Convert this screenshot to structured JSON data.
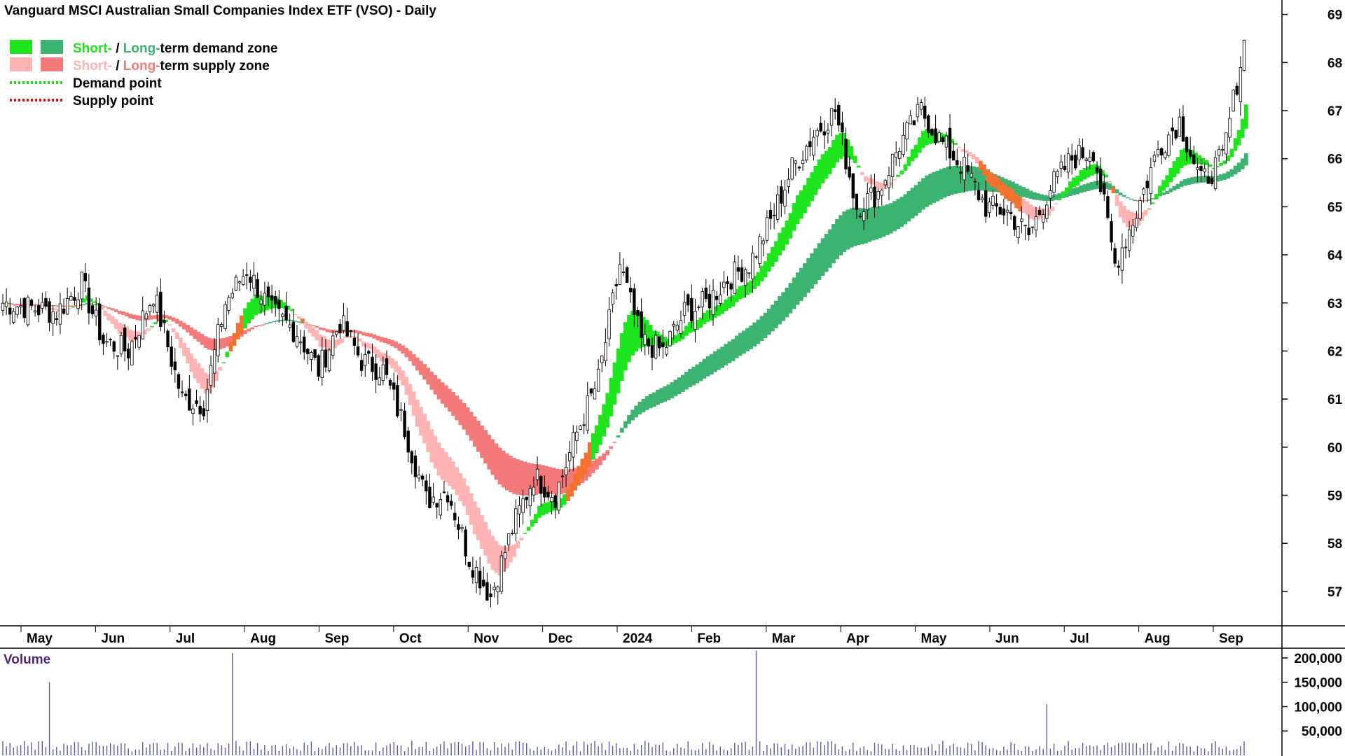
{
  "title": "Vanguard MSCI Australian Small Companies Index ETF (VSO) - Daily",
  "colors": {
    "short_demand": "#1fe51f",
    "long_demand": "#3cb371",
    "short_supply": "#ffb3b3",
    "long_supply": "#f47a7a",
    "overlap": "#f4722f",
    "demand_point": "#22dd22",
    "supply_point": "#e01010",
    "volume_bar": "#5a5aa8",
    "candle": "#000000"
  },
  "legend": [
    {
      "swatch_a": "short_demand",
      "swatch_b": "long_demand",
      "part_a": "Short-",
      "sep": " / ",
      "part_b": "Long-",
      "rest": "term demand zone"
    },
    {
      "swatch_a": "short_supply",
      "swatch_b": "long_supply",
      "part_a": "Short-",
      "sep": " / ",
      "part_b": "Long-",
      "rest": "term supply zone"
    },
    {
      "dotted": "demand_point",
      "label": "Demand point"
    },
    {
      "dotted": "supply_point",
      "label": "Supply point"
    }
  ],
  "volume_label": "Volume",
  "chart_data": {
    "type": "candlestick",
    "price_axis": {
      "ticks": [
        57,
        58,
        59,
        60,
        61,
        62,
        63,
        64,
        65,
        66,
        67,
        68,
        69
      ],
      "range": [
        56.3,
        69.3
      ],
      "position": "right"
    },
    "volume_axis": {
      "ticks": [
        50000,
        100000,
        150000,
        200000
      ],
      "tick_labels": [
        "50,000",
        "100,000",
        "150,000",
        "200,000"
      ],
      "range": [
        0,
        220000
      ],
      "position": "right"
    },
    "x_axis": {
      "labels": [
        "May",
        "Jun",
        "Jul",
        "Aug",
        "Sep",
        "Oct",
        "Nov",
        "Dec",
        "2024",
        "Feb",
        "Mar",
        "Apr",
        "May",
        "Jun",
        "Jul",
        "Aug",
        "Sep"
      ]
    },
    "price_path": [
      [
        0,
        63.0
      ],
      [
        8,
        62.9
      ],
      [
        15,
        62.8
      ],
      [
        22,
        63.4
      ],
      [
        28,
        62.2
      ],
      [
        35,
        62.0
      ],
      [
        42,
        63.2
      ],
      [
        50,
        61.0
      ],
      [
        56,
        60.9
      ],
      [
        62,
        63.0
      ],
      [
        68,
        63.7
      ],
      [
        75,
        62.8
      ],
      [
        82,
        62.4
      ],
      [
        88,
        61.6
      ],
      [
        94,
        62.6
      ],
      [
        100,
        61.8
      ],
      [
        106,
        61.6
      ],
      [
        112,
        60.4
      ],
      [
        118,
        58.9
      ],
      [
        124,
        59.1
      ],
      [
        130,
        57.7
      ],
      [
        136,
        56.9
      ],
      [
        142,
        58.3
      ],
      [
        148,
        59.4
      ],
      [
        154,
        59.0
      ],
      [
        160,
        60.3
      ],
      [
        166,
        61.4
      ],
      [
        172,
        63.8
      ],
      [
        178,
        62.2
      ],
      [
        184,
        62.0
      ],
      [
        190,
        62.8
      ],
      [
        196,
        63.0
      ],
      [
        202,
        63.5
      ],
      [
        208,
        63.8
      ],
      [
        214,
        64.7
      ],
      [
        220,
        65.8
      ],
      [
        226,
        66.5
      ],
      [
        232,
        67.0
      ],
      [
        238,
        65.0
      ],
      [
        244,
        65.3
      ],
      [
        250,
        66.3
      ],
      [
        256,
        67.0
      ],
      [
        262,
        66.3
      ],
      [
        268,
        65.8
      ],
      [
        274,
        65.0
      ],
      [
        280,
        64.9
      ],
      [
        286,
        64.4
      ],
      [
        292,
        65.4
      ],
      [
        298,
        66.0
      ],
      [
        304,
        66.2
      ],
      [
        310,
        63.8
      ],
      [
        316,
        64.9
      ],
      [
        322,
        66.2
      ],
      [
        328,
        66.8
      ],
      [
        334,
        65.5
      ],
      [
        340,
        66.0
      ],
      [
        346,
        68.4
      ]
    ],
    "candle_count": 347,
    "short_demand_zone_sections": "green ribbon rising from Feb 2024 to Apr 2024 and late 2024",
    "long_demand_zone_range_end": [
      64.9,
      65.5
    ],
    "volume_peaks": [
      {
        "x": 13,
        "value": 150000
      },
      {
        "x": 64,
        "value": 210000
      },
      {
        "x": 210,
        "value": 215000
      },
      {
        "x": 291,
        "value": 105000
      }
    ],
    "xlabel": "",
    "ylabel": ""
  }
}
